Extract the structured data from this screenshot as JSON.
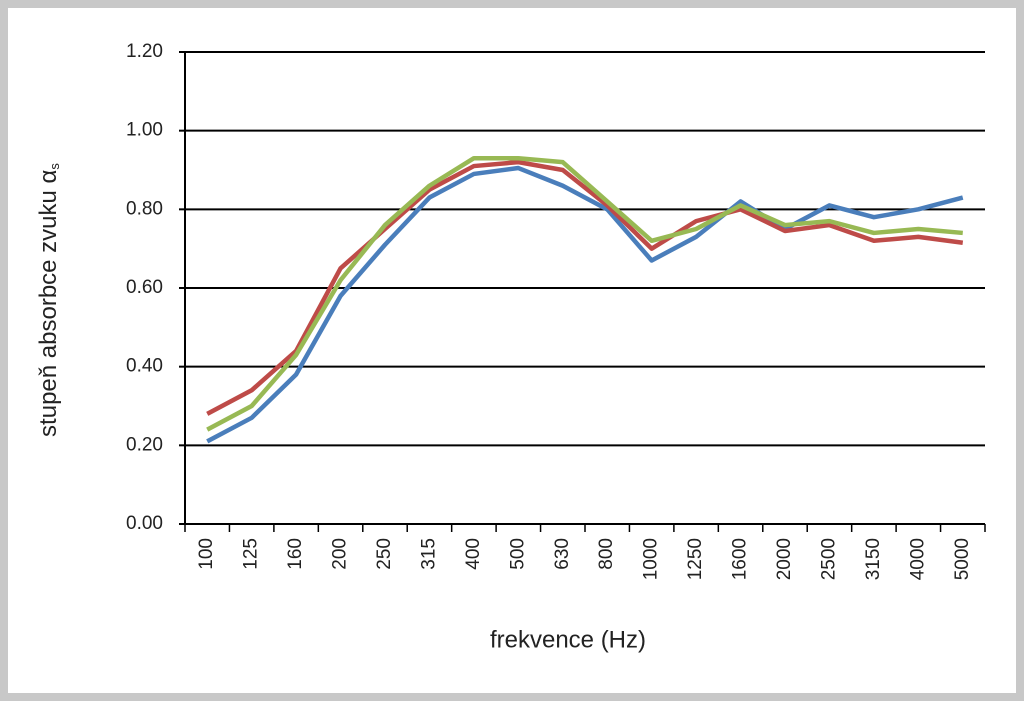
{
  "chart_data": {
    "type": "line",
    "y_label": "stupeň absorbce zvuku α",
    "y_label_subscript": "s",
    "x_label": "frekvence (Hz)",
    "categories": [
      "100",
      "125",
      "160",
      "200",
      "250",
      "315",
      "400",
      "500",
      "630",
      "800",
      "1000",
      "1250",
      "1600",
      "2000",
      "2500",
      "3150",
      "4000",
      "5000"
    ],
    "series": [
      {
        "color": "#4a7ebb",
        "values": [
          0.21,
          0.27,
          0.38,
          0.58,
          0.71,
          0.83,
          0.89,
          0.905,
          0.86,
          0.8,
          0.67,
          0.73,
          0.82,
          0.75,
          0.81,
          0.78,
          0.8,
          0.83
        ]
      },
      {
        "color": "#be4b48",
        "values": [
          0.28,
          0.34,
          0.44,
          0.65,
          0.75,
          0.85,
          0.91,
          0.92,
          0.9,
          0.81,
          0.7,
          0.77,
          0.8,
          0.745,
          0.76,
          0.72,
          0.73,
          0.715
        ]
      },
      {
        "color": "#98b954",
        "values": [
          0.24,
          0.3,
          0.43,
          0.62,
          0.76,
          0.86,
          0.93,
          0.93,
          0.92,
          0.82,
          0.72,
          0.75,
          0.81,
          0.76,
          0.77,
          0.74,
          0.75,
          0.74
        ]
      }
    ],
    "ylim": [
      0,
      1.2
    ],
    "yticks": [
      {
        "value": 0,
        "label": "0.00"
      },
      {
        "value": 0.2,
        "label": "0.20"
      },
      {
        "value": 0.4,
        "label": "0.40"
      },
      {
        "value": 0.6,
        "label": "0.60"
      },
      {
        "value": 0.8,
        "label": "0.80"
      },
      {
        "value": 1.0,
        "label": "1.00"
      },
      {
        "value": 1.2,
        "label": "1.20"
      }
    ],
    "grid": true
  }
}
